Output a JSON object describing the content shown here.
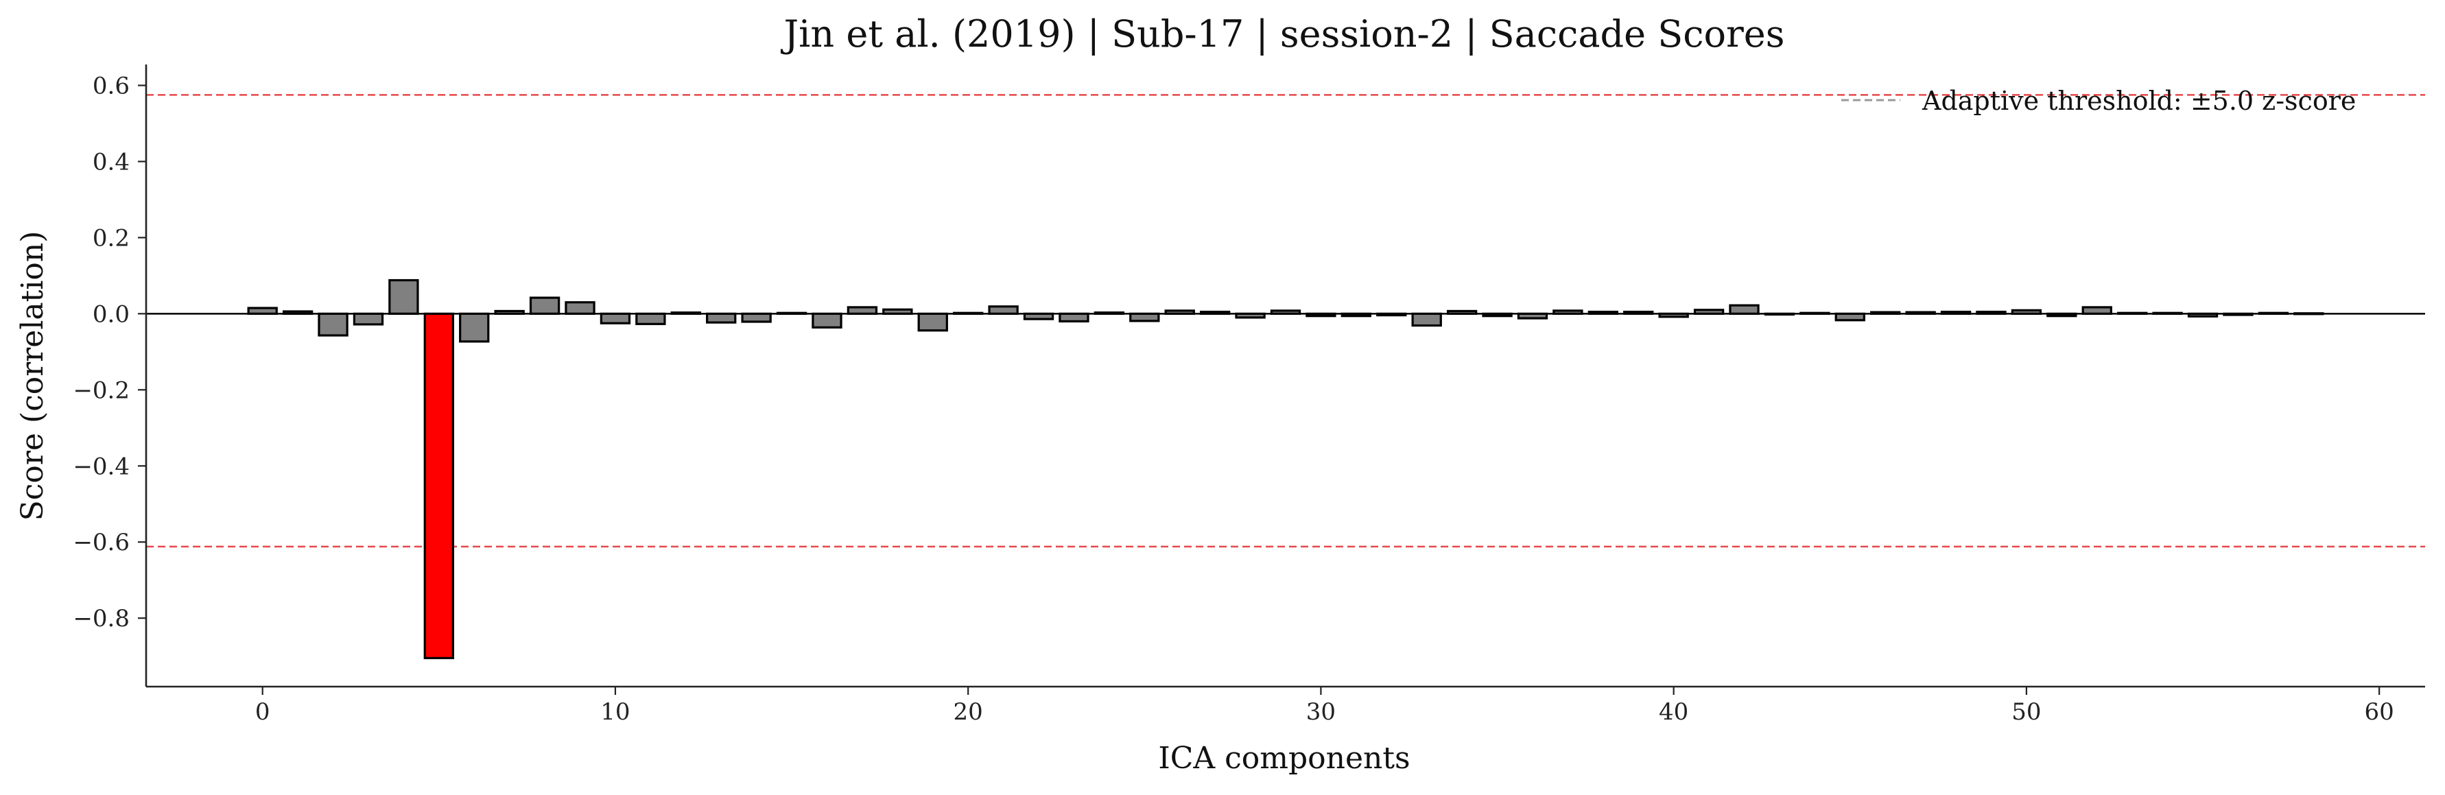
{
  "chart_data": {
    "type": "bar",
    "title": "Jin et al. (2019) | Sub-17 | session-2 | Saccade Scores",
    "xlabel": "ICA components",
    "ylabel": "Score (correlation)",
    "xlim": [
      -3.3,
      61.3
    ],
    "ylim": [
      -0.98,
      0.655
    ],
    "x_ticks": [
      0,
      10,
      20,
      30,
      40,
      50,
      60
    ],
    "x_tick_labels": [
      "0",
      "10",
      "20",
      "30",
      "40",
      "50",
      "60"
    ],
    "y_ticks": [
      0.6,
      0.4,
      0.2,
      0.0,
      -0.2,
      -0.4,
      -0.6,
      -0.8
    ],
    "y_tick_labels": [
      "0.6",
      "0.4",
      "0.2",
      "0.0",
      "−0.2",
      "−0.4",
      "−0.6",
      "−0.8"
    ],
    "categories": [
      "0",
      "1",
      "2",
      "3",
      "4",
      "5",
      "6",
      "7",
      "8",
      "9",
      "10",
      "11",
      "12",
      "13",
      "14",
      "15",
      "16",
      "17",
      "18",
      "19",
      "20",
      "21",
      "22",
      "23",
      "24",
      "25",
      "26",
      "27",
      "28",
      "29",
      "30",
      "31",
      "32",
      "33",
      "34",
      "35",
      "36",
      "37",
      "38",
      "39",
      "40",
      "41",
      "42",
      "43",
      "44",
      "45",
      "46",
      "47",
      "48",
      "49",
      "50",
      "51",
      "52",
      "53",
      "54",
      "55",
      "56",
      "57",
      "58"
    ],
    "values": [
      0.015,
      0.006,
      -0.057,
      -0.028,
      0.088,
      -0.905,
      -0.073,
      0.007,
      0.042,
      0.03,
      -0.025,
      -0.027,
      0.003,
      -0.023,
      -0.021,
      0.002,
      -0.036,
      0.017,
      0.011,
      -0.044,
      0.002,
      0.019,
      -0.014,
      -0.02,
      0.003,
      -0.019,
      0.008,
      0.005,
      -0.01,
      0.008,
      -0.006,
      -0.006,
      -0.004,
      -0.031,
      0.007,
      -0.006,
      -0.012,
      0.008,
      0.005,
      0.005,
      -0.008,
      0.01,
      0.022,
      -0.002,
      0.002,
      -0.017,
      0.004,
      0.004,
      0.005,
      0.005,
      0.009,
      -0.006,
      0.017,
      0.002,
      0.002,
      -0.007,
      -0.003,
      0.002,
      0.001
    ],
    "flagged_components": [
      5
    ],
    "threshold_upper": 0.575,
    "threshold_lower": -0.612,
    "legend_entries": [
      "Adaptive threshold: ±5.0 z-score"
    ],
    "legend_position": "top-right",
    "grid": false,
    "colors": {
      "bar_normal": "#808080",
      "bar_flagged": "#ff0000",
      "bar_edge": "#000000",
      "threshold_line": "#e8474a",
      "legend_line": "#9a9a9a",
      "zero_line": "#000000",
      "axis": "#222222"
    }
  }
}
